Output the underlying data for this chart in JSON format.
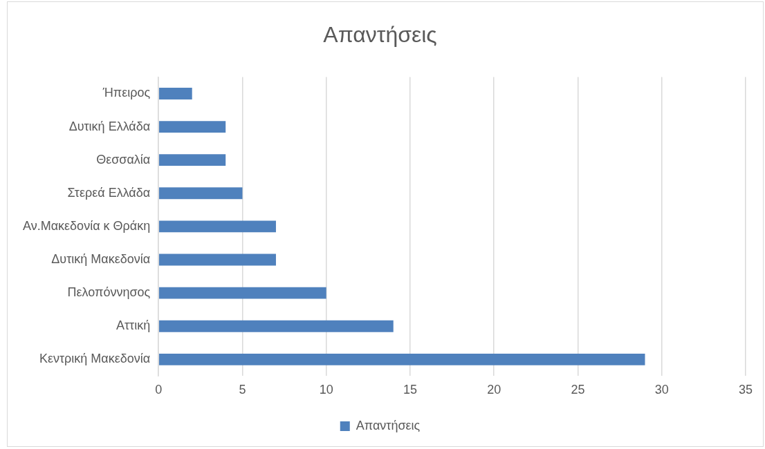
{
  "chart_data": {
    "type": "bar",
    "orientation": "horizontal",
    "title": "Απαντήσεις",
    "categories": [
      "Ήπειρος",
      "Δυτική Ελλάδα",
      "Θεσσαλία",
      "Στερεά Ελλάδα",
      "Αν.Μακεδονία κ Θράκη",
      "Δυτική Μακεδονία",
      "Πελοπόννησος",
      "Αττική",
      "Κεντρική Μακεδονία"
    ],
    "series": [
      {
        "name": "Απαντήσεις",
        "color": "#4f81bd",
        "values": [
          2,
          4,
          4,
          5,
          7,
          7,
          10,
          14,
          29
        ]
      }
    ],
    "xlim": [
      0,
      35
    ],
    "xticks": [
      0,
      5,
      10,
      15,
      20,
      25,
      30,
      35
    ],
    "grid": "x",
    "legend": "bottom"
  }
}
